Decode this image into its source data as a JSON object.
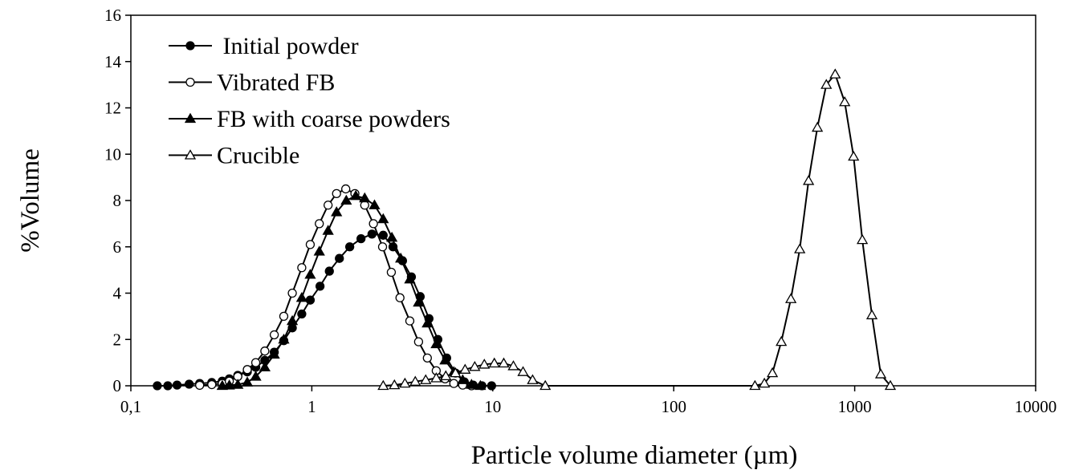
{
  "chart_data": {
    "type": "line",
    "x_label": "Particle volume diameter (µm)",
    "y_label": "%Volume",
    "xlog": true,
    "xlim": [
      0.1,
      10000
    ],
    "xticks": [
      {
        "value": 0.1,
        "label": "0,1"
      },
      1,
      10,
      100,
      1000,
      10000
    ],
    "ylim": [
      0,
      16
    ],
    "yticks": [
      0,
      2,
      4,
      6,
      8,
      10,
      12,
      14,
      16
    ],
    "grid": false,
    "legend": "upper left",
    "series": [
      {
        "name": " Initial powder",
        "color": "#000000",
        "marker": "circle",
        "filled": true,
        "x": [
          0.14,
          0.16,
          0.18,
          0.21,
          0.24,
          0.28,
          0.32,
          0.35,
          0.39,
          0.44,
          0.49,
          0.55,
          0.62,
          0.7,
          0.78,
          0.88,
          0.98,
          1.11,
          1.25,
          1.42,
          1.62,
          1.87,
          2.15,
          2.48,
          2.81,
          3.17,
          3.55,
          3.97,
          4.44,
          4.97,
          5.56,
          6.22,
          6.96,
          7.79,
          8.71,
          9.85
        ],
        "values": [
          0,
          0,
          0.03,
          0.07,
          0.1,
          0.14,
          0.2,
          0.3,
          0.45,
          0.6,
          0.8,
          1.1,
          1.45,
          1.95,
          2.5,
          3.1,
          3.7,
          4.3,
          4.95,
          5.5,
          6.0,
          6.35,
          6.55,
          6.5,
          6.0,
          5.4,
          4.7,
          3.85,
          2.9,
          2.0,
          1.2,
          0.55,
          0.17,
          0.03,
          0,
          0
        ]
      },
      {
        "name": "Vibrated FB",
        "color": "#000000",
        "marker": "circle",
        "filled": false,
        "x": [
          0.24,
          0.28,
          0.32,
          0.35,
          0.39,
          0.44,
          0.49,
          0.55,
          0.62,
          0.7,
          0.78,
          0.88,
          0.98,
          1.1,
          1.23,
          1.37,
          1.54,
          1.73,
          1.96,
          2.19,
          2.46,
          2.75,
          3.07,
          3.48,
          3.89,
          4.35,
          4.87,
          5.45,
          6.09,
          6.82,
          7.63
        ],
        "values": [
          0.02,
          0.05,
          0.1,
          0.2,
          0.4,
          0.7,
          1.0,
          1.5,
          2.2,
          3.0,
          4.0,
          5.1,
          6.1,
          7.0,
          7.8,
          8.3,
          8.5,
          8.3,
          7.8,
          7.0,
          6.0,
          4.9,
          3.8,
          2.8,
          1.9,
          1.2,
          0.65,
          0.3,
          0.1,
          0.03,
          0
        ]
      },
      {
        "name": "FB with coarse powders",
        "color": "#000000",
        "marker": "triangle",
        "filled": true,
        "x": [
          0.32,
          0.35,
          0.39,
          0.44,
          0.49,
          0.55,
          0.62,
          0.7,
          0.78,
          0.88,
          0.98,
          1.1,
          1.23,
          1.37,
          1.55,
          1.75,
          1.96,
          2.22,
          2.48,
          2.77,
          3.1,
          3.48,
          3.89,
          4.35,
          4.87,
          5.45,
          6.09,
          6.82,
          7.63,
          8.54
        ],
        "values": [
          0,
          0.02,
          0.05,
          0.15,
          0.4,
          0.8,
          1.35,
          2.0,
          2.8,
          3.8,
          4.8,
          5.8,
          6.7,
          7.5,
          8.0,
          8.2,
          8.1,
          7.8,
          7.2,
          6.4,
          5.5,
          4.6,
          3.6,
          2.7,
          1.8,
          1.1,
          0.6,
          0.25,
          0.05,
          0
        ]
      },
      {
        "name": "Crucible",
        "color": "#000000",
        "marker": "triangle",
        "filled": false,
        "x": [
          2.48,
          2.86,
          3.27,
          3.73,
          4.26,
          4.87,
          5.5,
          6.22,
          7.03,
          7.95,
          8.98,
          10.2,
          11.5,
          13.0,
          14.7,
          16.6,
          19.5,
          281,
          317,
          351,
          393,
          444,
          497,
          556,
          622,
          697,
          780,
          881,
          986,
          1102,
          1245,
          1393,
          1574
        ],
        "values": [
          0,
          0.03,
          0.1,
          0.18,
          0.25,
          0.33,
          0.42,
          0.55,
          0.7,
          0.82,
          0.92,
          0.97,
          0.97,
          0.85,
          0.6,
          0.25,
          0,
          0,
          0.1,
          0.55,
          1.9,
          3.75,
          5.9,
          8.85,
          11.15,
          13.0,
          13.45,
          12.25,
          9.9,
          6.3,
          3.05,
          0.5,
          0
        ]
      }
    ]
  }
}
